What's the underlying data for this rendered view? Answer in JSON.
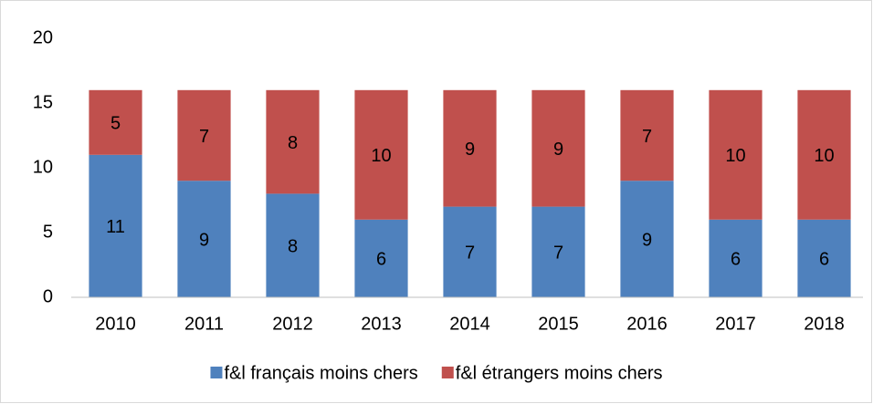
{
  "chart_data": {
    "type": "stacked_bar",
    "categories": [
      "2010",
      "2011",
      "2012",
      "2013",
      "2014",
      "2015",
      "2016",
      "2017",
      "2018"
    ],
    "series": [
      {
        "name": "f&l français moins chers",
        "color": "#4f81bd",
        "values": [
          11,
          9,
          8,
          6,
          7,
          7,
          9,
          6,
          6
        ]
      },
      {
        "name": "f&l étrangers moins chers",
        "color": "#c0504d",
        "values": [
          5,
          7,
          8,
          10,
          9,
          9,
          7,
          10,
          10
        ]
      }
    ],
    "ylim": [
      0,
      20
    ],
    "yticks": [
      0,
      5,
      10,
      15,
      20
    ],
    "grid": false,
    "legend": "bottom",
    "data_labels": true
  }
}
